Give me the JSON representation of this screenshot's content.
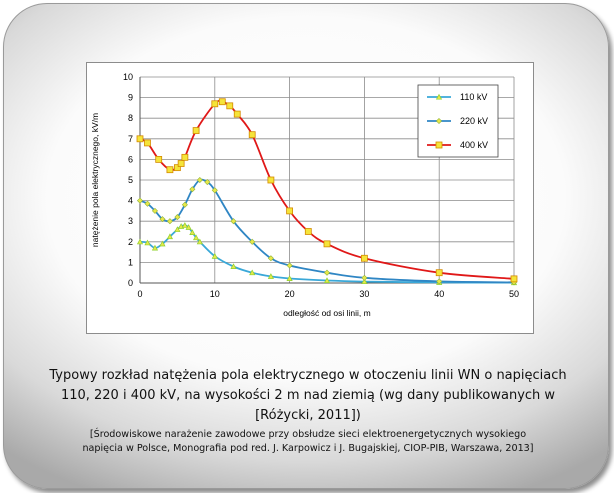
{
  "caption": {
    "line1": "Typowy rozkład natężenia pola elektrycznego w otoczeniu linii WN o napięciach",
    "line2": "110, 220 i 400 kV, na wysokości 2 m nad ziemią (wg dany publikowanych w",
    "line3": "[Różycki, 2011])"
  },
  "source": {
    "line1": "[Środowiskowe narażenie zawodowe przy obsłudze sieci elektroenergetycznych wysokiego",
    "line2": "napięcia w Polsce, Monografia pod red. J. Karpowicz i J. Bugajskiej, CIOP-PIB, Warszawa, 2013]"
  },
  "chart_data": {
    "type": "line",
    "title": "",
    "xlabel": "odległość od osi linii, m",
    "ylabel": "natężenie pola elektrycznego, kV/m",
    "xlim": [
      0,
      50
    ],
    "ylim": [
      0,
      10
    ],
    "xticks": [
      0,
      10,
      20,
      30,
      40,
      50
    ],
    "yticks": [
      0,
      1,
      2,
      3,
      4,
      5,
      6,
      7,
      8,
      9,
      10
    ],
    "grid": true,
    "legend_position": "top-right",
    "series": [
      {
        "name": "110 kV",
        "color": "#8fd12e",
        "marker_fill": "#e8e84a",
        "line_color": "#3aa8d8",
        "x": [
          0,
          1,
          2,
          3,
          4,
          5,
          5.5,
          6,
          6.5,
          7,
          7.5,
          8,
          10,
          12.5,
          15,
          17.5,
          20,
          25,
          30,
          40,
          50
        ],
        "y": [
          2.0,
          1.95,
          1.7,
          1.9,
          2.25,
          2.6,
          2.75,
          2.8,
          2.7,
          2.45,
          2.2,
          2.0,
          1.3,
          0.8,
          0.5,
          0.32,
          0.22,
          0.12,
          0.07,
          0.03,
          0.02
        ]
      },
      {
        "name": "220 kV",
        "color": "#2f86c4",
        "marker_fill": "#e8e84a",
        "line_color": "#2f86c4",
        "x": [
          0,
          1,
          2,
          3,
          4,
          5,
          6,
          7,
          8,
          9,
          10,
          12.5,
          15,
          17.5,
          20,
          25,
          30,
          40,
          50
        ],
        "y": [
          4.0,
          3.85,
          3.5,
          3.1,
          3.0,
          3.2,
          3.8,
          4.55,
          5.0,
          4.9,
          4.5,
          3.0,
          2.0,
          1.2,
          0.85,
          0.5,
          0.25,
          0.08,
          0.03
        ]
      },
      {
        "name": "400 kV",
        "color": "#e01818",
        "marker_fill": "#f5e43a",
        "line_color": "#e01818",
        "x": [
          0,
          1,
          2.5,
          4,
          5,
          5.5,
          6,
          7.5,
          10,
          11,
          12,
          13,
          15,
          17.5,
          20,
          22.5,
          25,
          30,
          40,
          50
        ],
        "y": [
          7.0,
          6.8,
          6.0,
          5.5,
          5.6,
          5.8,
          6.1,
          7.4,
          8.7,
          8.8,
          8.6,
          8.2,
          7.2,
          5.0,
          3.5,
          2.5,
          1.9,
          1.2,
          0.5,
          0.2
        ]
      }
    ]
  }
}
